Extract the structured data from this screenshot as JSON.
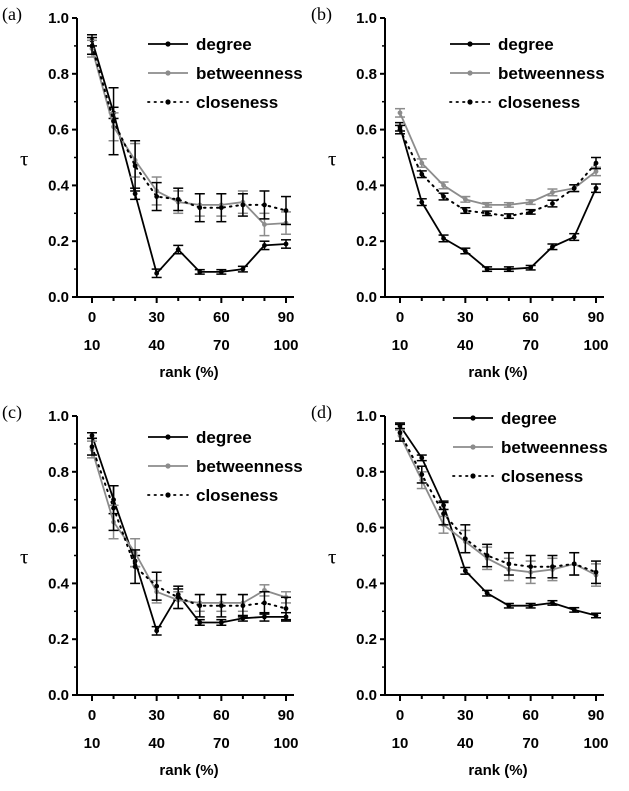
{
  "colors": {
    "degree": "#000000",
    "betweenness": "#8c8c8c",
    "closeness": "#000000"
  },
  "chart_data": [
    {
      "type": "line",
      "panel_label": "(a)",
      "ylabel": "τ",
      "xlabel": "rank (%)",
      "ylim": [
        0.0,
        1.0
      ],
      "yticks": [
        "0.0",
        "0.2",
        "0.4",
        "0.6",
        "0.8",
        "1.0"
      ],
      "xticks_top": [
        "0",
        "30",
        "60",
        "90"
      ],
      "xticks_bottom": [
        "10",
        "40",
        "70",
        "100"
      ],
      "legend_position": "top-right",
      "x": [
        0,
        10,
        20,
        30,
        40,
        50,
        60,
        70,
        80,
        90
      ],
      "series": [
        {
          "name": "degree",
          "style": "solid",
          "values": [
            0.92,
            0.66,
            0.37,
            0.085,
            0.17,
            0.09,
            0.09,
            0.1,
            0.185,
            0.19
          ],
          "errors": [
            0.02,
            0.02,
            0.02,
            0.015,
            0.015,
            0.008,
            0.008,
            0.01,
            0.015,
            0.015
          ]
        },
        {
          "name": "betweenness",
          "style": "solid",
          "values": [
            0.89,
            0.61,
            0.49,
            0.38,
            0.34,
            0.33,
            0.33,
            0.34,
            0.26,
            0.265
          ],
          "errors": [
            0.03,
            0.05,
            0.06,
            0.05,
            0.04,
            0.04,
            0.04,
            0.04,
            0.04,
            0.04
          ]
        },
        {
          "name": "closeness",
          "style": "dotted",
          "values": [
            0.9,
            0.63,
            0.47,
            0.36,
            0.35,
            0.32,
            0.32,
            0.33,
            0.33,
            0.31
          ],
          "errors": [
            0.03,
            0.12,
            0.09,
            0.05,
            0.04,
            0.05,
            0.05,
            0.04,
            0.05,
            0.05
          ]
        }
      ]
    },
    {
      "type": "line",
      "panel_label": "(b)",
      "ylabel": "τ",
      "xlabel": "rank (%)",
      "ylim": [
        0.0,
        1.0
      ],
      "yticks": [
        "0.0",
        "0.2",
        "0.4",
        "0.6",
        "0.8",
        "1.0"
      ],
      "xticks_top": [
        "0",
        "30",
        "60",
        "90"
      ],
      "xticks_bottom": [
        "10",
        "40",
        "70",
        "100"
      ],
      "legend_position": "top-right",
      "x": [
        0,
        10,
        20,
        30,
        40,
        50,
        60,
        70,
        80,
        90
      ],
      "series": [
        {
          "name": "degree",
          "style": "solid",
          "values": [
            0.61,
            0.34,
            0.21,
            0.165,
            0.1,
            0.1,
            0.105,
            0.18,
            0.215,
            0.39
          ],
          "errors": [
            0.015,
            0.012,
            0.012,
            0.01,
            0.008,
            0.008,
            0.008,
            0.01,
            0.012,
            0.015
          ]
        },
        {
          "name": "betweenness",
          "style": "solid",
          "values": [
            0.66,
            0.48,
            0.4,
            0.35,
            0.33,
            0.33,
            0.34,
            0.375,
            0.39,
            0.45
          ],
          "errors": [
            0.015,
            0.015,
            0.012,
            0.01,
            0.008,
            0.008,
            0.008,
            0.012,
            0.012,
            0.015
          ]
        },
        {
          "name": "closeness",
          "style": "dotted",
          "values": [
            0.6,
            0.44,
            0.36,
            0.31,
            0.3,
            0.29,
            0.305,
            0.335,
            0.39,
            0.48
          ],
          "errors": [
            0.015,
            0.012,
            0.012,
            0.01,
            0.008,
            0.008,
            0.008,
            0.012,
            0.012,
            0.02
          ]
        }
      ]
    },
    {
      "type": "line",
      "panel_label": "(c)",
      "ylabel": "τ",
      "xlabel": "rank (%)",
      "ylim": [
        0.0,
        1.0
      ],
      "yticks": [
        "0.0",
        "0.2",
        "0.4",
        "0.6",
        "0.8",
        "1.0"
      ],
      "xticks_top": [
        "0",
        "30",
        "60",
        "90"
      ],
      "xticks_bottom": [
        "10",
        "40",
        "70",
        "100"
      ],
      "legend_position": "top-right",
      "x": [
        0,
        10,
        20,
        30,
        40,
        50,
        60,
        70,
        80,
        90
      ],
      "series": [
        {
          "name": "degree",
          "style": "solid",
          "values": [
            0.93,
            0.7,
            0.48,
            0.23,
            0.36,
            0.26,
            0.26,
            0.275,
            0.28,
            0.28
          ],
          "errors": [
            0.01,
            0.05,
            0.02,
            0.015,
            0.02,
            0.01,
            0.01,
            0.01,
            0.015,
            0.015
          ]
        },
        {
          "name": "betweenness",
          "style": "solid",
          "values": [
            0.88,
            0.62,
            0.51,
            0.37,
            0.34,
            0.33,
            0.33,
            0.33,
            0.375,
            0.35
          ],
          "errors": [
            0.03,
            0.06,
            0.05,
            0.04,
            0.03,
            0.03,
            0.03,
            0.03,
            0.02,
            0.02
          ]
        },
        {
          "name": "closeness",
          "style": "dotted",
          "values": [
            0.89,
            0.67,
            0.46,
            0.39,
            0.35,
            0.32,
            0.32,
            0.32,
            0.33,
            0.31
          ],
          "errors": [
            0.03,
            0.08,
            0.06,
            0.05,
            0.04,
            0.04,
            0.04,
            0.04,
            0.04,
            0.04
          ]
        }
      ]
    },
    {
      "type": "line",
      "panel_label": "(d)",
      "ylabel": "τ",
      "xlabel": "rank (%)",
      "ylim": [
        0.0,
        1.0
      ],
      "yticks": [
        "0.0",
        "0.2",
        "0.4",
        "0.6",
        "0.8",
        "1.0"
      ],
      "xticks_top": [
        "0",
        "30",
        "60",
        "90"
      ],
      "xticks_bottom": [
        "10",
        "40",
        "70",
        "100"
      ],
      "legend_position": "top-right",
      "x": [
        0,
        10,
        20,
        30,
        40,
        50,
        60,
        70,
        80,
        90
      ],
      "series": [
        {
          "name": "degree",
          "style": "solid",
          "values": [
            0.965,
            0.85,
            0.68,
            0.445,
            0.365,
            0.32,
            0.32,
            0.33,
            0.305,
            0.285
          ],
          "errors": [
            0.01,
            0.01,
            0.015,
            0.012,
            0.01,
            0.008,
            0.008,
            0.008,
            0.008,
            0.008
          ]
        },
        {
          "name": "betweenness",
          "style": "solid",
          "values": [
            0.93,
            0.77,
            0.61,
            0.55,
            0.49,
            0.45,
            0.44,
            0.45,
            0.47,
            0.43
          ],
          "errors": [
            0.02,
            0.03,
            0.03,
            0.04,
            0.04,
            0.04,
            0.04,
            0.04,
            0.04,
            0.04
          ]
        },
        {
          "name": "closeness",
          "style": "dotted",
          "values": [
            0.94,
            0.79,
            0.65,
            0.56,
            0.5,
            0.47,
            0.46,
            0.46,
            0.47,
            0.44
          ],
          "errors": [
            0.03,
            0.03,
            0.04,
            0.05,
            0.04,
            0.04,
            0.04,
            0.04,
            0.04,
            0.04
          ]
        }
      ]
    }
  ]
}
